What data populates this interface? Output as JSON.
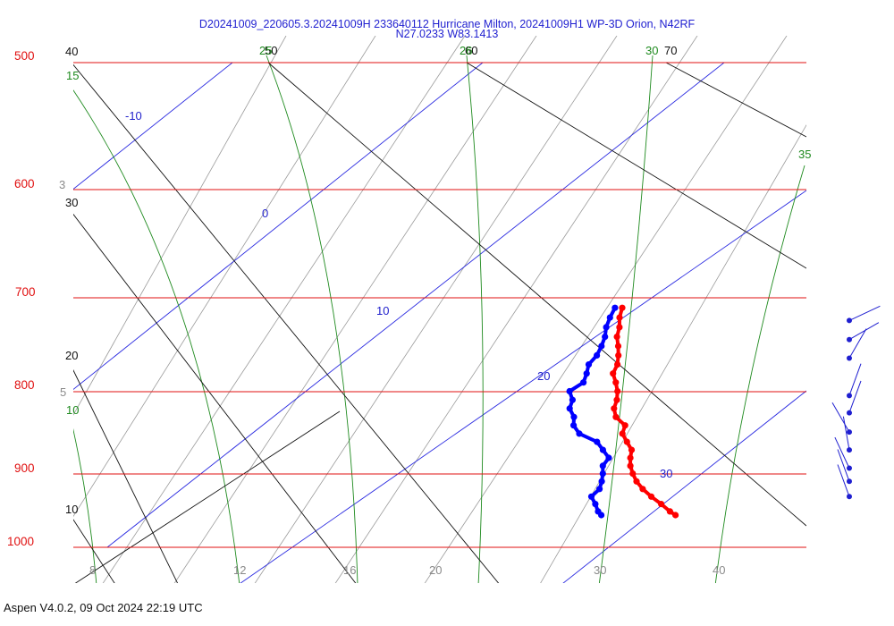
{
  "chart_data": {
    "type": "skew-t log-p",
    "title_line1": "D20241009_220605.3.20241009H 233640112 Hurricane Milton, 20241009H1 WP-3D Orion, N42RF",
    "title_line2": "N27.0233 W83.1413",
    "pressure_labels": [
      "500",
      "600",
      "700",
      "800",
      "900",
      "1000"
    ],
    "isotherm_labels": [
      "-10",
      "0",
      "10",
      "20",
      "30"
    ],
    "bottom_temp_labels": [
      "8",
      "12",
      "16",
      "20",
      "30",
      "40"
    ],
    "mixing_ratio_labels": [
      "3",
      "5"
    ],
    "dry_adiabat_labels": [
      "40",
      "30",
      "20",
      "10",
      "50",
      "60",
      "70"
    ],
    "moist_adiabat_labels": [
      "15",
      "10",
      "25",
      "26",
      "30",
      "35"
    ],
    "temperature_profile": [
      [
        710,
        16.6
      ],
      [
        720,
        17.0
      ],
      [
        730,
        17.6
      ],
      [
        740,
        18.0
      ],
      [
        750,
        18.7
      ],
      [
        760,
        19.3
      ],
      [
        770,
        19.8
      ],
      [
        780,
        20.0
      ],
      [
        790,
        20.8
      ],
      [
        800,
        21.5
      ],
      [
        810,
        22.0
      ],
      [
        820,
        22.3
      ],
      [
        830,
        23.0
      ],
      [
        840,
        24.3
      ],
      [
        850,
        24.6
      ],
      [
        860,
        25.5
      ],
      [
        870,
        26.4
      ],
      [
        880,
        26.8
      ],
      [
        890,
        27.3
      ],
      [
        900,
        28.0
      ],
      [
        910,
        28.8
      ],
      [
        920,
        29.8
      ],
      [
        930,
        31.0
      ],
      [
        940,
        32.3
      ],
      [
        950,
        33.5
      ],
      [
        955,
        34.2
      ]
    ],
    "dewpoint_profile": [
      [
        710,
        16.0
      ],
      [
        720,
        16.2
      ],
      [
        730,
        16.5
      ],
      [
        740,
        17.0
      ],
      [
        750,
        17.3
      ],
      [
        760,
        17.5
      ],
      [
        770,
        17.4
      ],
      [
        780,
        17.8
      ],
      [
        790,
        18.1
      ],
      [
        800,
        17.5
      ],
      [
        810,
        18.3
      ],
      [
        820,
        18.6
      ],
      [
        830,
        19.5
      ],
      [
        840,
        20.0
      ],
      [
        850,
        21.0
      ],
      [
        860,
        23.0
      ],
      [
        870,
        24.0
      ],
      [
        880,
        25.0
      ],
      [
        890,
        25.0
      ],
      [
        900,
        25.5
      ],
      [
        910,
        25.9
      ],
      [
        920,
        26.2
      ],
      [
        930,
        26.0
      ],
      [
        940,
        26.8
      ],
      [
        950,
        27.5
      ],
      [
        955,
        28.0
      ]
    ],
    "wind_barbs": [
      {
        "pressure": 723,
        "direction": 245
      },
      {
        "pressure": 743,
        "direction": 240
      },
      {
        "pressure": 763,
        "direction": 210
      },
      {
        "pressure": 805,
        "direction": 200
      },
      {
        "pressure": 825,
        "direction": 200
      },
      {
        "pressure": 848,
        "direction": 150
      },
      {
        "pressure": 870,
        "direction": 170
      },
      {
        "pressure": 893,
        "direction": 155
      },
      {
        "pressure": 910,
        "direction": 160
      },
      {
        "pressure": 930,
        "direction": 160
      }
    ],
    "colors": {
      "isobar": "#e01010",
      "isotherm": "#2a2ae0",
      "dry_adiabat": "#111111",
      "moist_adiabat": "#1e8a1e",
      "mixing_ratio": "#9a9a9a",
      "temperature": "#ff0000",
      "dewpoint": "#0000ff"
    }
  },
  "footer": "Aspen V4.0.2, 09 Oct 2024  22:19 UTC"
}
